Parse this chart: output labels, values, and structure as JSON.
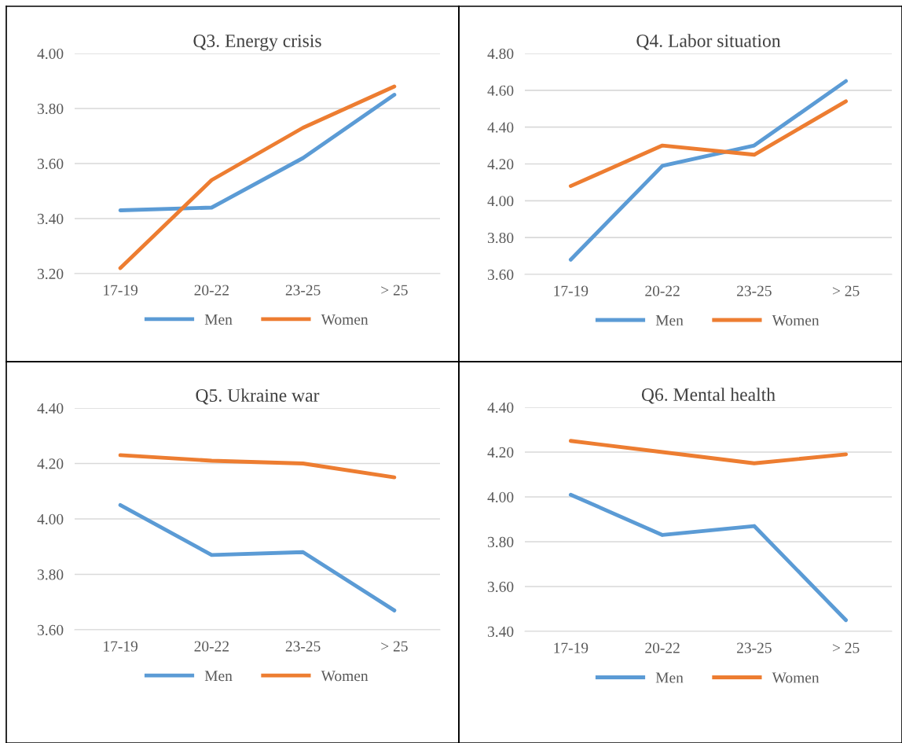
{
  "chart_data": [
    {
      "type": "line",
      "title": "Q3. Energy crisis",
      "categories": [
        "17-19",
        "20-22",
        "23-25",
        "> 25"
      ],
      "series": [
        {
          "name": "Men",
          "color": "#5b9bd5",
          "values": [
            3.43,
            3.44,
            3.62,
            3.85
          ]
        },
        {
          "name": "Women",
          "color": "#ed7d31",
          "values": [
            3.22,
            3.54,
            3.73,
            3.88
          ]
        }
      ],
      "ylim": [
        3.2,
        4.0
      ],
      "yticks": [
        {
          "value": 3.2,
          "label": "3.20"
        },
        {
          "value": 3.4,
          "label": "3.40"
        },
        {
          "value": 3.6,
          "label": "3.60"
        },
        {
          "value": 3.8,
          "label": "3.80"
        },
        {
          "value": 4.0,
          "label": "4.00"
        }
      ],
      "grid": "y",
      "legend": "bottom",
      "marker": "none",
      "line_style": "solid"
    },
    {
      "type": "line",
      "title": "Q4. Labor situation",
      "categories": [
        "17-19",
        "20-22",
        "23-25",
        "> 25"
      ],
      "series": [
        {
          "name": "Men",
          "color": "#5b9bd5",
          "values": [
            3.68,
            4.19,
            4.3,
            4.65
          ]
        },
        {
          "name": "Women",
          "color": "#ed7d31",
          "values": [
            4.08,
            4.3,
            4.25,
            4.54
          ]
        }
      ],
      "ylim": [
        3.6,
        4.8
      ],
      "yticks": [
        {
          "value": 3.6,
          "label": "3.60"
        },
        {
          "value": 3.8,
          "label": "3.80"
        },
        {
          "value": 4.0,
          "label": "4.00"
        },
        {
          "value": 4.2,
          "label": "4.20"
        },
        {
          "value": 4.4,
          "label": "4.40"
        },
        {
          "value": 4.6,
          "label": "4.60"
        },
        {
          "value": 4.8,
          "label": "4.80"
        }
      ],
      "grid": "y",
      "legend": "bottom",
      "marker": "none",
      "line_style": "solid"
    },
    {
      "type": "line",
      "title": "Q5. Ukraine war",
      "categories": [
        "17-19",
        "20-22",
        "23-25",
        "> 25"
      ],
      "series": [
        {
          "name": "Men",
          "color": "#5b9bd5",
          "values": [
            4.05,
            3.87,
            3.88,
            3.67
          ]
        },
        {
          "name": "Women",
          "color": "#ed7d31",
          "values": [
            4.23,
            4.21,
            4.2,
            4.15
          ]
        }
      ],
      "ylim": [
        3.6,
        4.4
      ],
      "yticks": [
        {
          "value": 3.6,
          "label": "3.60"
        },
        {
          "value": 3.8,
          "label": "3.80"
        },
        {
          "value": 4.0,
          "label": "4.00"
        },
        {
          "value": 4.2,
          "label": "4.20"
        },
        {
          "value": 4.4,
          "label": "4.40"
        }
      ],
      "grid": "y",
      "legend": "bottom",
      "marker": "none",
      "line_style": "solid"
    },
    {
      "type": "line",
      "title": "Q6. Mental health",
      "categories": [
        "17-19",
        "20-22",
        "23-25",
        "> 25"
      ],
      "series": [
        {
          "name": "Men",
          "color": "#5b9bd5",
          "values": [
            4.01,
            3.83,
            3.87,
            3.45
          ]
        },
        {
          "name": "Women",
          "color": "#ed7d31",
          "values": [
            4.25,
            4.2,
            4.15,
            4.19
          ]
        }
      ],
      "ylim": [
        3.4,
        4.4
      ],
      "yticks": [
        {
          "value": 3.4,
          "label": "3.40"
        },
        {
          "value": 3.6,
          "label": "3.60"
        },
        {
          "value": 3.8,
          "label": "3.80"
        },
        {
          "value": 4.0,
          "label": "4.00"
        },
        {
          "value": 4.2,
          "label": "4.20"
        },
        {
          "value": 4.4,
          "label": "4.40"
        }
      ],
      "grid": "y",
      "legend": "bottom",
      "marker": "none",
      "line_style": "solid"
    }
  ]
}
